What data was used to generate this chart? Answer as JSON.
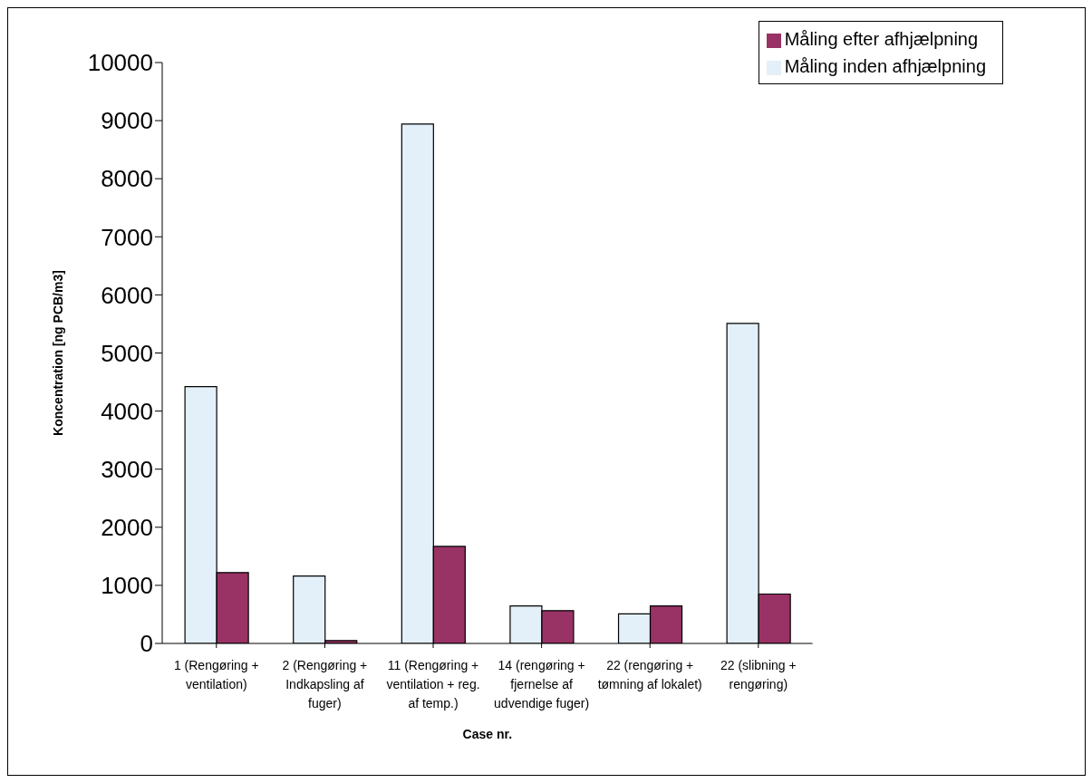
{
  "chart_data": {
    "type": "bar",
    "xlabel": "Case nr.",
    "ylabel": "Koncentration [ng PCB/m3]",
    "categories": [
      "1 (Rengøring + ventilation)",
      "2 (Rengøring + Indkapsling af fuger)",
      "11 (Rengøring + ventilation + reg. af temp.)",
      "14 (rengøring + fjernelse af udvendige fuger)",
      "22 (rengøring + tømning af lokalet)",
      "22 (slibning + rengøring)"
    ],
    "series": [
      {
        "name": "Måling inden afhjælpning",
        "color": "#e3f0f9",
        "values": [
          4420,
          1160,
          8940,
          645,
          510,
          5510
        ]
      },
      {
        "name": "Måling efter afhjælpning",
        "color": "#993366",
        "values": [
          1220,
          50,
          1670,
          565,
          645,
          850
        ]
      }
    ],
    "ylim": [
      0,
      10000
    ],
    "yticks": [
      0,
      1000,
      2000,
      3000,
      4000,
      5000,
      6000,
      7000,
      8000,
      9000,
      10000
    ],
    "grid": false,
    "legend": "top right"
  }
}
